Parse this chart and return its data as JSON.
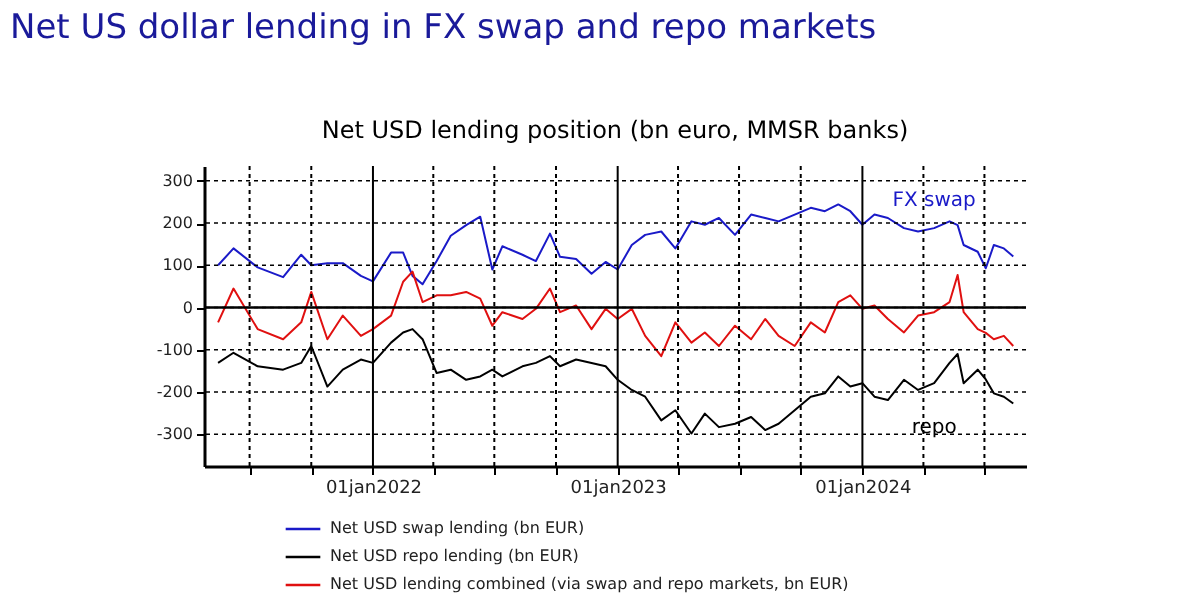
{
  "chart_data": {
    "type": "line",
    "title": "Net US dollar lending in FX swap and repo markets",
    "subtitle": "Net USD lending position (bn euro, MMSR banks)",
    "x": [
      "2021-05-15",
      "2021-06-07",
      "2021-07-13",
      "2021-08-20",
      "2021-09-16",
      "2021-10-01",
      "2021-10-25",
      "2021-11-17",
      "2021-12-14",
      "2022-01-01",
      "2022-01-28",
      "2022-02-15",
      "2022-03-01",
      "2022-03-16",
      "2022-04-06",
      "2022-04-27",
      "2022-05-20",
      "2022-06-10",
      "2022-06-28",
      "2022-07-13",
      "2022-08-12",
      "2022-09-01",
      "2022-09-22",
      "2022-10-07",
      "2022-10-31",
      "2022-11-23",
      "2022-12-14",
      "2023-01-01",
      "2023-01-22",
      "2023-02-11",
      "2023-03-07",
      "2023-03-28",
      "2023-04-21",
      "2023-05-11",
      "2023-06-01",
      "2023-06-25",
      "2023-07-19",
      "2023-08-09",
      "2023-08-29",
      "2023-09-22",
      "2023-10-16",
      "2023-11-06",
      "2023-11-26",
      "2023-12-14",
      "2024-01-01",
      "2024-01-19",
      "2024-02-08",
      "2024-03-03",
      "2024-03-24",
      "2024-04-17",
      "2024-05-10",
      "2024-05-22",
      "2024-05-31",
      "2024-06-21",
      "2024-07-03",
      "2024-07-15",
      "2024-07-30",
      "2024-08-13"
    ],
    "series": [
      {
        "name": "Net USD swap lending (bn EUR)",
        "color": "#1a1ac8",
        "values": [
          100,
          140,
          95,
          72,
          125,
          100,
          105,
          105,
          75,
          62,
          130,
          130,
          75,
          55,
          110,
          170,
          195,
          215,
          90,
          145,
          125,
          110,
          175,
          120,
          115,
          80,
          108,
          90,
          148,
          172,
          180,
          140,
          204,
          196,
          212,
          172,
          220,
          212,
          204,
          220,
          236,
          228,
          244,
          228,
          196,
          220,
          212,
          188,
          180,
          188,
          204,
          195,
          148,
          132,
          93,
          148,
          140,
          121
        ]
      },
      {
        "name": "Net USD repo lending (bn EUR)",
        "color": "#000000",
        "values": [
          -131,
          -107,
          -139,
          -147,
          -131,
          -91,
          -187,
          -147,
          -123,
          -131,
          -83,
          -59,
          -51,
          -75,
          -155,
          -147,
          -171,
          -163,
          -147,
          -163,
          -139,
          -131,
          -115,
          -139,
          -123,
          -131,
          -139,
          -171,
          -195,
          -211,
          -267,
          -243,
          -298,
          -251,
          -283,
          -275,
          -259,
          -290,
          -275,
          -243,
          -211,
          -203,
          -163,
          -187,
          -179,
          -211,
          -219,
          -171,
          -195,
          -179,
          -131,
          -110,
          -179,
          -147,
          -170,
          -203,
          -211,
          -227
        ]
      },
      {
        "name": "Net USD lending combined (via swap and repo markets, bn EUR)",
        "color": "#e01010",
        "values": [
          -35,
          45,
          -51,
          -75,
          -35,
          37,
          -75,
          -19,
          -67,
          -51,
          -19,
          61,
          85,
          13,
          29,
          29,
          37,
          21,
          -43,
          -11,
          -27,
          -3,
          45,
          -11,
          5,
          -51,
          -3,
          -27,
          -3,
          -67,
          -115,
          -35,
          -83,
          -59,
          -91,
          -43,
          -75,
          -27,
          -67,
          -91,
          -35,
          -59,
          13,
          29,
          -3,
          5,
          -27,
          -59,
          -19,
          -11,
          13,
          77,
          -11,
          -51,
          -60,
          -75,
          -67,
          -91
        ]
      }
    ],
    "xlim": [
      "2021-04-24",
      "2024-09-01"
    ],
    "xticks": [
      {
        "value": "2021-07-01",
        "label": null
      },
      {
        "value": "2021-10-01",
        "label": null
      },
      {
        "value": "2022-01-01",
        "label": "01jan2022"
      },
      {
        "value": "2022-04-01",
        "label": null
      },
      {
        "value": "2022-07-01",
        "label": null
      },
      {
        "value": "2022-10-01",
        "label": null
      },
      {
        "value": "2023-01-01",
        "label": "01jan2023"
      },
      {
        "value": "2023-04-01",
        "label": null
      },
      {
        "value": "2023-07-01",
        "label": null
      },
      {
        "value": "2023-10-01",
        "label": null
      },
      {
        "value": "2024-01-01",
        "label": "01jan2024"
      },
      {
        "value": "2024-04-01",
        "label": null
      },
      {
        "value": "2024-07-01",
        "label": null
      }
    ],
    "ylim": [
      -375,
      335
    ],
    "yticks": [
      -300,
      -200,
      -100,
      0,
      100,
      200,
      300
    ],
    "ref_lines": [
      {
        "axis": "y",
        "value": 0,
        "color": "#000000"
      }
    ],
    "annotations": [
      "FX swap",
      "repo"
    ],
    "grid": true,
    "legend": "bottom",
    "line_style": "solid",
    "marker": "none"
  }
}
